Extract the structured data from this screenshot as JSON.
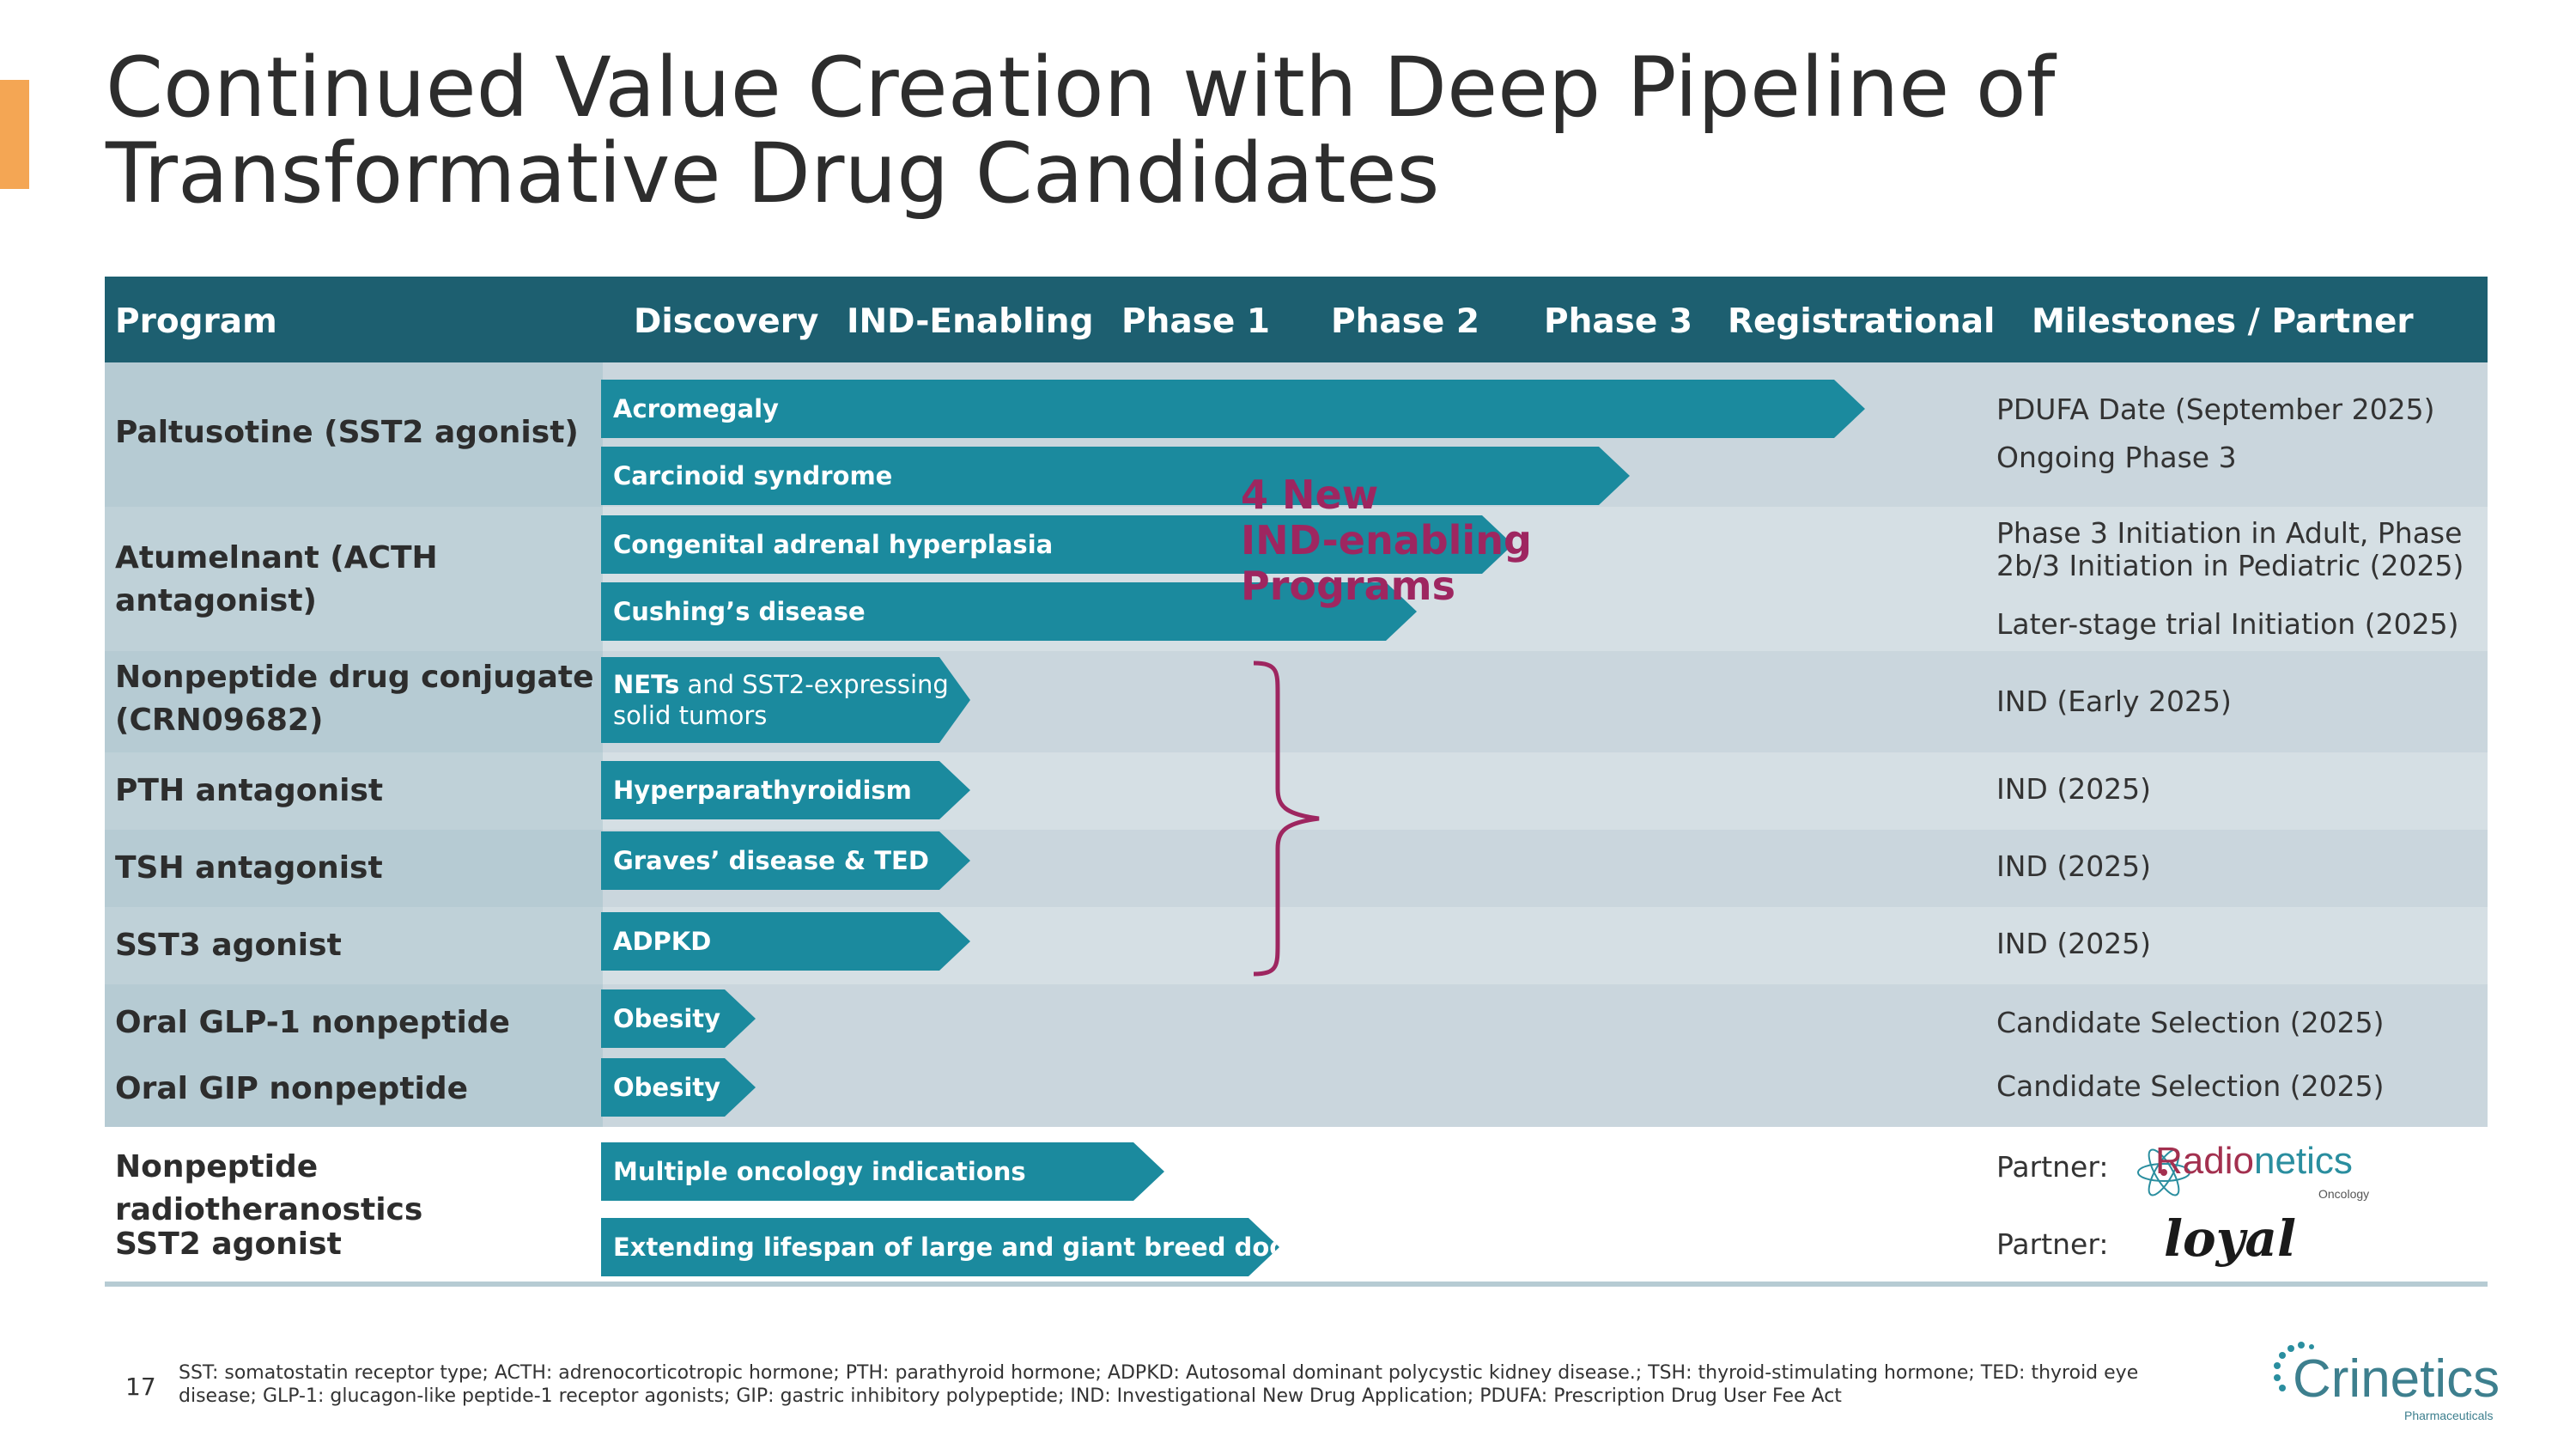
{
  "title": "Continued Value Creation with Deep Pipeline of Transformative Drug Candidates",
  "header": {
    "program": "Program",
    "discovery": "Discovery",
    "ind_enabling": "IND-Enabling",
    "phase1": "Phase 1",
    "phase2": "Phase 2",
    "phase3": "Phase 3",
    "registrational": "Registrational",
    "milestones": "Milestones / Partner"
  },
  "rows": [
    {
      "program": "Paltusotine (SST2 agonist)"
    },
    {
      "program": "Atumelnant (ACTH antagonist)"
    },
    {
      "program": "Nonpeptide drug conjugate (CRN09682)"
    },
    {
      "program": "PTH antagonist"
    },
    {
      "program": "TSH antagonist"
    },
    {
      "program": "SST3 agonist"
    },
    {
      "program": "Oral GLP-1 nonpeptide"
    },
    {
      "program": "Oral GIP nonpeptide"
    },
    {
      "program": "Nonpeptide radiotheranostics"
    },
    {
      "program": "SST2 agonist"
    }
  ],
  "indications": {
    "acromegaly": "Acromegaly",
    "carcinoid": "Carcinoid syndrome",
    "cah": "Congenital adrenal hyperplasia",
    "cushings": "Cushing’s disease",
    "nets_bold": "NETs",
    "nets_rest": " and SST2-expressing solid tumors",
    "hpt": "Hyperparathyroidism",
    "graves": "Graves’ disease & TED",
    "adpkd": "ADPKD",
    "obesity1": "Obesity",
    "obesity2": "Obesity",
    "oncology": "Multiple oncology indications",
    "dogs": "Extending lifespan of large and giant breed dogs"
  },
  "milestones": {
    "pdufa": "PDUFA Date (September 2025)",
    "ongoing_p3": "Ongoing Phase 3",
    "p3_init": "Phase 3 Initiation in Adult, Phase 2b/3 Initiation in Pediatric (2025)",
    "later_stage": "Later-stage trial Initiation (2025)",
    "ind_early": "IND (Early 2025)",
    "ind_pth": "IND (2025)",
    "ind_tsh": "IND (2025)",
    "ind_sst3": "IND (2025)",
    "cand_glp1": "Candidate Selection (2025)",
    "cand_gip": "Candidate Selection (2025)",
    "partner1": "Partner:",
    "partner2": "Partner:"
  },
  "brace_label": {
    "line1": "4 New",
    "line2": "IND-enabling",
    "line3": "Programs"
  },
  "partners": {
    "radionetics_a": "Radio",
    "radionetics_b": "netics",
    "radionetics_sub": "Oncology",
    "loyal": "loyal"
  },
  "footer": {
    "page_number": "17",
    "footnote": "SST: somatostatin receptor type; ACTH: adrenocorticotropic hormone; PTH: parathyroid hormone;  ADPKD: Autosomal dominant polycystic kidney disease.; TSH: thyroid-stimulating hormone; TED: thyroid eye disease; GLP-1: glucagon-like peptide-1 receptor agonists; GIP: gastric inhibitory polypeptide; IND: Investigational New Drug Application; PDUFA: Prescription Drug User Fee Act",
    "logo_text": "Crinetics",
    "logo_sub": "Pharmaceuticals"
  },
  "colors": {
    "header_bg": "#1d5f70",
    "arrow": "#1b8a9e",
    "accent": "#f4a654",
    "brace": "#9e2660"
  }
}
